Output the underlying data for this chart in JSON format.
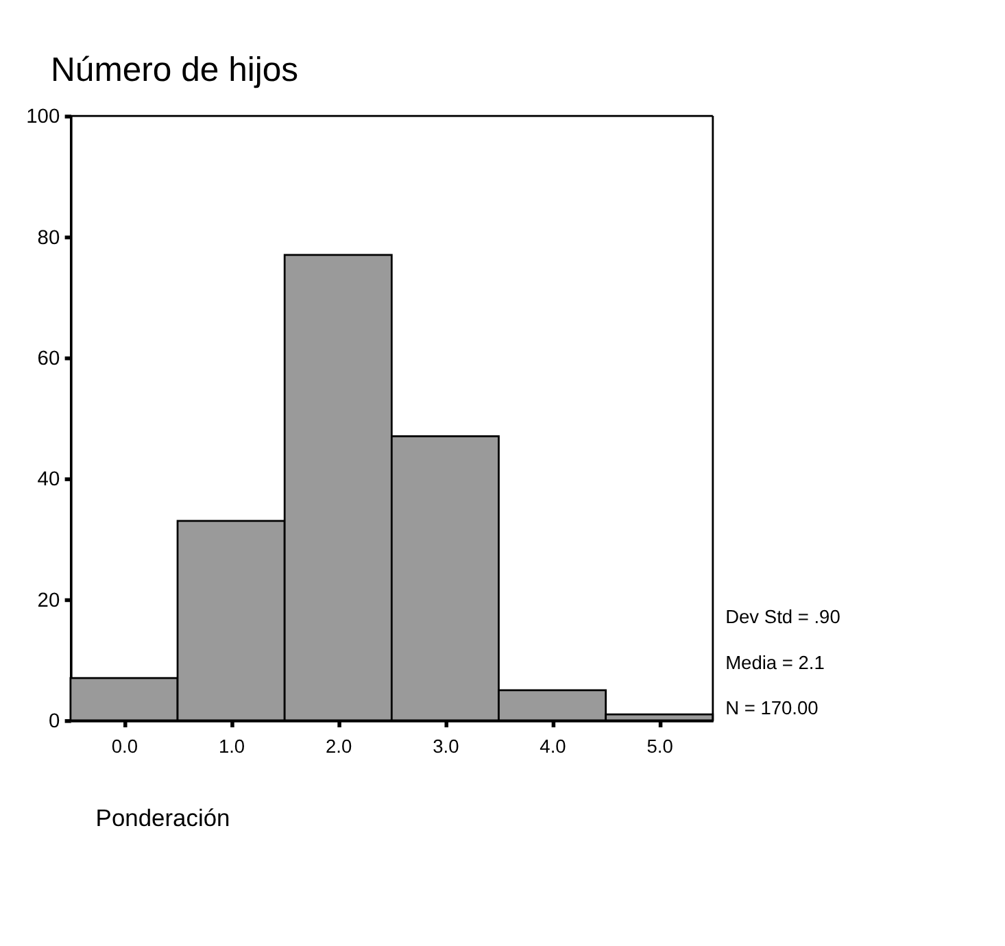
{
  "chart_data": {
    "type": "histogram",
    "title": "Número de hijos",
    "bins": [
      -0.5,
      0.5,
      1.5,
      2.5,
      3.5,
      4.5,
      5.5
    ],
    "values": [
      7,
      33,
      77,
      47,
      5,
      1
    ],
    "color": "#9a9a9a",
    "xlim": [
      -0.5,
      5.5
    ],
    "xticks": [
      {
        "value": 0,
        "label": "0.0"
      },
      {
        "value": 1,
        "label": "1.0"
      },
      {
        "value": 2,
        "label": "2.0"
      },
      {
        "value": 3,
        "label": "3.0"
      },
      {
        "value": 4,
        "label": "4.0"
      },
      {
        "value": 5,
        "label": "5.0"
      }
    ],
    "ylim": [
      0,
      100
    ],
    "yticks": [
      0,
      20,
      40,
      60,
      80,
      100
    ],
    "grid": false,
    "annotations": [
      "Dev Std = .90",
      "Media = 2.1",
      "N = 170.00",
      "Ponderación"
    ]
  }
}
